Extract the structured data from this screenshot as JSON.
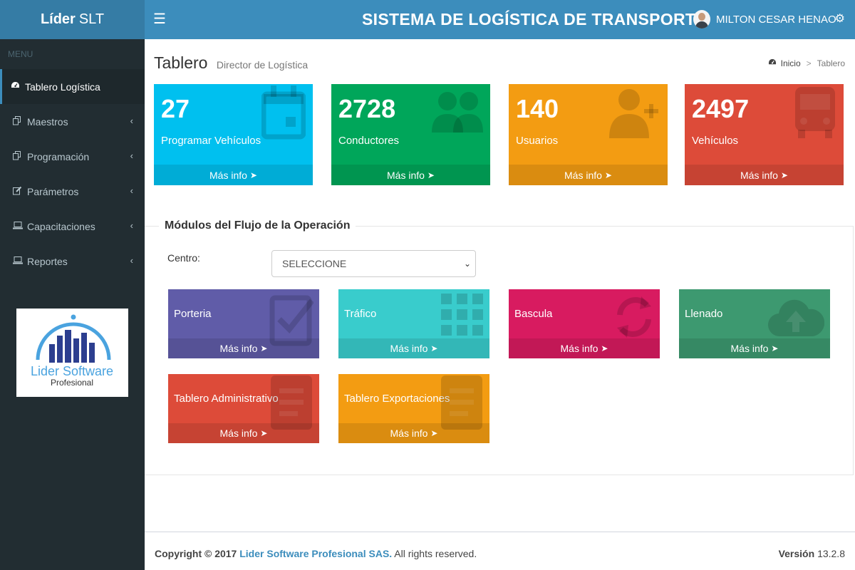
{
  "header": {
    "brand_bold": "Líder",
    "brand_rest": "SLT",
    "system_title": "SISTEMA DE LOGÍSTICA DE TRANSPORTE",
    "user_name": "MILTON CESAR HENAO",
    "toggle_icon": "hamburger-icon",
    "settings_icon": "gears-icon"
  },
  "sidebar": {
    "menu_header": "MENU",
    "items": [
      {
        "label": "Tablero Logística",
        "icon": "dashboard-icon",
        "active": true
      },
      {
        "label": "Maestros",
        "icon": "copy-icon"
      },
      {
        "label": "Programación",
        "icon": "copy-icon"
      },
      {
        "label": "Parámetros",
        "icon": "edit-icon"
      },
      {
        "label": "Capacitaciones",
        "icon": "laptop-icon"
      },
      {
        "label": "Reportes",
        "icon": "laptop-icon"
      }
    ],
    "logo_text_1": "Lider Software",
    "logo_text_2": "Profesional"
  },
  "page": {
    "title": "Tablero",
    "subtitle": "Director de Logística",
    "breadcrumb": [
      "Inicio",
      "Tablero"
    ]
  },
  "stats": [
    {
      "value": "27",
      "label": "Programar Vehículos",
      "footer": "Más info",
      "color": "#00c0ef",
      "icon": "calendar-icon"
    },
    {
      "value": "2728",
      "label": "Conductores",
      "footer": "Más info",
      "color": "#00a65a",
      "icon": "users-icon"
    },
    {
      "value": "140",
      "label": "Usuarios",
      "footer": "Más info",
      "color": "#f39c12",
      "icon": "user-plus-icon"
    },
    {
      "value": "2497",
      "label": "Vehículos",
      "footer": "Más info",
      "color": "#dd4b39",
      "icon": "bus-icon"
    }
  ],
  "modules_section": {
    "title": "Módulos del Flujo de la Operación",
    "centro_label": "Centro:",
    "centro_value": "SELECCIONE",
    "modules": [
      {
        "label": "Porteria",
        "footer": "Más info",
        "color": "#605ca8",
        "icon": "check-square-icon"
      },
      {
        "label": "Tráfico",
        "footer": "Más info",
        "color": "#39cccc",
        "icon": "grid-icon"
      },
      {
        "label": "Bascula",
        "footer": "Más info",
        "color": "#d81b60",
        "icon": "refresh-icon"
      },
      {
        "label": "Llenado",
        "footer": "Más info",
        "color": "#3d9970",
        "icon": "cloud-upload-icon"
      },
      {
        "label": "Tablero Administrativo",
        "footer": "Más info",
        "color": "#dd4b39",
        "icon": "document-icon"
      },
      {
        "label": "Tablero Exportaciones",
        "footer": "Más info",
        "color": "#f39c12",
        "icon": "document-icon"
      }
    ]
  },
  "footer": {
    "copyright": "Copyright © 2017",
    "company": "Lider Software Profesional SAS.",
    "rights": "All rights reserved.",
    "version_label": "Versión",
    "version": "13.2.8"
  }
}
